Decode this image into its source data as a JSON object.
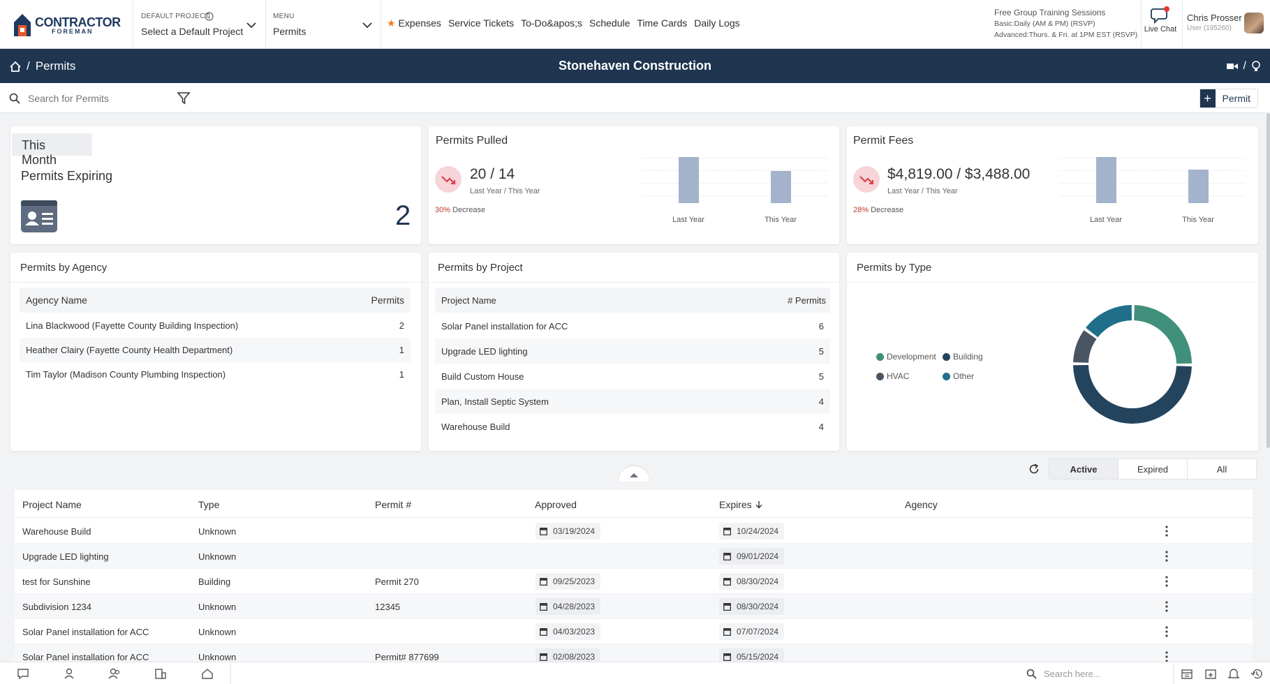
{
  "header": {
    "logo_text": "CONTRACTOR",
    "logo_sub": "FOREMAN",
    "default_project_label": "DEFAULT PROJECT",
    "default_project_value": "Select a Default Project",
    "menu_label": "MENU",
    "menu_value": "Permits",
    "nav": [
      "Expenses",
      "Service Tickets",
      "To-Do&apos;s",
      "Schedule",
      "Time Cards",
      "Daily Logs"
    ],
    "training_title": "Free Group Training Sessions",
    "training_line1": "Basic:Daily (AM & PM) (RSVP)",
    "training_line2": "Advanced:Thurs. & Fri. at 1PM EST (RSVP)",
    "live_chat": "Live Chat",
    "user_name": "Chris Prosser",
    "user_id": "User (195260)"
  },
  "titlebar": {
    "breadcrumb_sep": "/",
    "breadcrumb": "Permits",
    "company": "Stonehaven Construction",
    "right_sep": "/"
  },
  "search": {
    "placeholder": "Search for Permits",
    "add_label": "Permit"
  },
  "expiring": {
    "chip": "This Month",
    "title": "Permits Expiring",
    "count": "2"
  },
  "pulled": {
    "title": "Permits Pulled",
    "value": "20 / 14",
    "sub": "Last Year / This Year",
    "pct": "30%",
    "pct_label": "Decrease",
    "bar_last_year": 20,
    "bar_this_year": 14,
    "labels": [
      "Last Year",
      "This Year"
    ]
  },
  "fees": {
    "title": "Permit Fees",
    "value": "$4,819.00 / $3,488.00",
    "sub": "Last Year / This Year",
    "pct": "28%",
    "pct_label": "Decrease",
    "bar_last_year": 4819,
    "bar_this_year": 3488,
    "labels": [
      "Last Year",
      "This Year"
    ]
  },
  "by_agency": {
    "title": "Permits by Agency",
    "col1": "Agency Name",
    "col2": "Permits",
    "rows": [
      {
        "name": "Lina Blackwood (Fayette County Building Inspection)",
        "count": "2"
      },
      {
        "name": "Heather Clairy (Fayette County Health Department)",
        "count": "1"
      },
      {
        "name": "Tim Taylor (Madison County Plumbing Inspection)",
        "count": "1"
      }
    ]
  },
  "by_project": {
    "title": "Permits by Project",
    "col1": "Project Name",
    "col2": "# Permits",
    "rows": [
      {
        "name": "Solar Panel installation for ACC",
        "count": "6"
      },
      {
        "name": "Upgrade LED lighting",
        "count": "5"
      },
      {
        "name": "Build Custom House",
        "count": "5"
      },
      {
        "name": "Plan, Install Septic System",
        "count": "4"
      },
      {
        "name": "Warehouse Build",
        "count": "4"
      }
    ]
  },
  "by_type": {
    "title": "Permits by Type",
    "legend": [
      {
        "label": "Development",
        "color": "#3f8f7a"
      },
      {
        "label": "Building",
        "color": "#24445e"
      },
      {
        "label": "HVAC",
        "color": "#4a5563"
      },
      {
        "label": "Other",
        "color": "#1f6f8b"
      }
    ]
  },
  "chart_data": {
    "type": "pie",
    "title": "Permits by Type",
    "categories": [
      "Development",
      "Building",
      "HVAC",
      "Other"
    ],
    "values": [
      25,
      50,
      10,
      15
    ],
    "colors": [
      "#3f8f7a",
      "#24445e",
      "#4a5563",
      "#1f6f8b"
    ]
  },
  "filter_tabs": [
    "Active",
    "Expired",
    "All"
  ],
  "table": {
    "columns": [
      "Project Name",
      "Type",
      "Permit #",
      "Approved",
      "Expires",
      "Agency"
    ],
    "rows": [
      {
        "project": "Warehouse Build",
        "type": "Unknown",
        "permit": "",
        "approved": "03/19/2024",
        "expires": "10/24/2024"
      },
      {
        "project": "Upgrade LED lighting",
        "type": "Unknown",
        "permit": "",
        "approved": "",
        "expires": "09/01/2024"
      },
      {
        "project": "test for Sunshine",
        "type": "Building",
        "permit": "Permit 270",
        "approved": "09/25/2023",
        "expires": "08/30/2024"
      },
      {
        "project": "Subdivision 1234",
        "type": "Unknown",
        "permit": "12345",
        "approved": "04/28/2023",
        "expires": "08/30/2024"
      },
      {
        "project": "Solar Panel installation for ACC",
        "type": "Unknown",
        "permit": "",
        "approved": "04/03/2023",
        "expires": "07/07/2024"
      },
      {
        "project": "Solar Panel installation for ACC",
        "type": "Unknown",
        "permit": "Permit# 877699",
        "approved": "02/08/2023",
        "expires": "05/15/2024"
      }
    ]
  },
  "bottom": {
    "search_placeholder": "Search here..."
  }
}
